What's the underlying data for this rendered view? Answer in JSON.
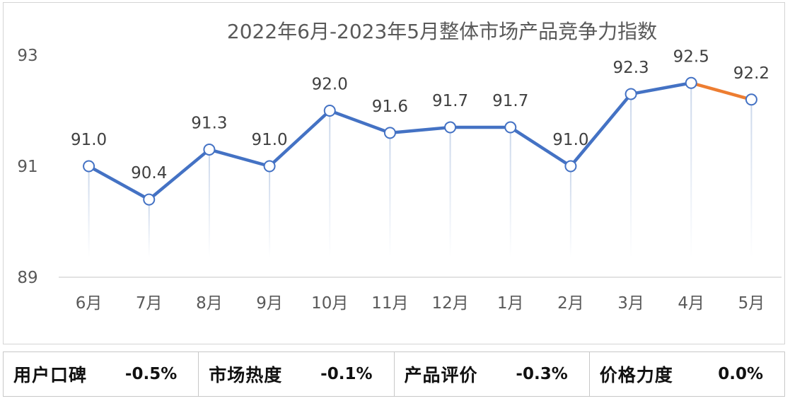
{
  "chart_data": {
    "type": "line",
    "title": "2022年6月-2023年5月整体市场产品竞争力指数",
    "categories": [
      "6月",
      "7月",
      "8月",
      "9月",
      "10月",
      "11月",
      "12月",
      "1月",
      "2月",
      "3月",
      "4月",
      "5月"
    ],
    "values": [
      91.0,
      90.4,
      91.3,
      91.0,
      92.0,
      91.6,
      91.7,
      91.7,
      91.0,
      92.3,
      92.5,
      92.2
    ],
    "value_labels": [
      "91.0",
      "90.4",
      "91.3",
      "91.0",
      "92.0",
      "91.6",
      "91.7",
      "91.7",
      "91.0",
      "92.3",
      "92.5",
      "92.2"
    ],
    "ylim": [
      89,
      93
    ],
    "y_ticks": [
      "89",
      "91",
      "93"
    ],
    "xlabel": "",
    "ylabel": "",
    "grid": false,
    "line_color": "#4472c4",
    "last_segment_color": "#ed7d31"
  },
  "metrics": [
    {
      "label": "用户口碑",
      "value": "-0.5%"
    },
    {
      "label": "市场热度",
      "value": "-0.1%"
    },
    {
      "label": "产品评价",
      "value": "-0.3%"
    },
    {
      "label": "价格力度",
      "value": "0.0%"
    }
  ]
}
